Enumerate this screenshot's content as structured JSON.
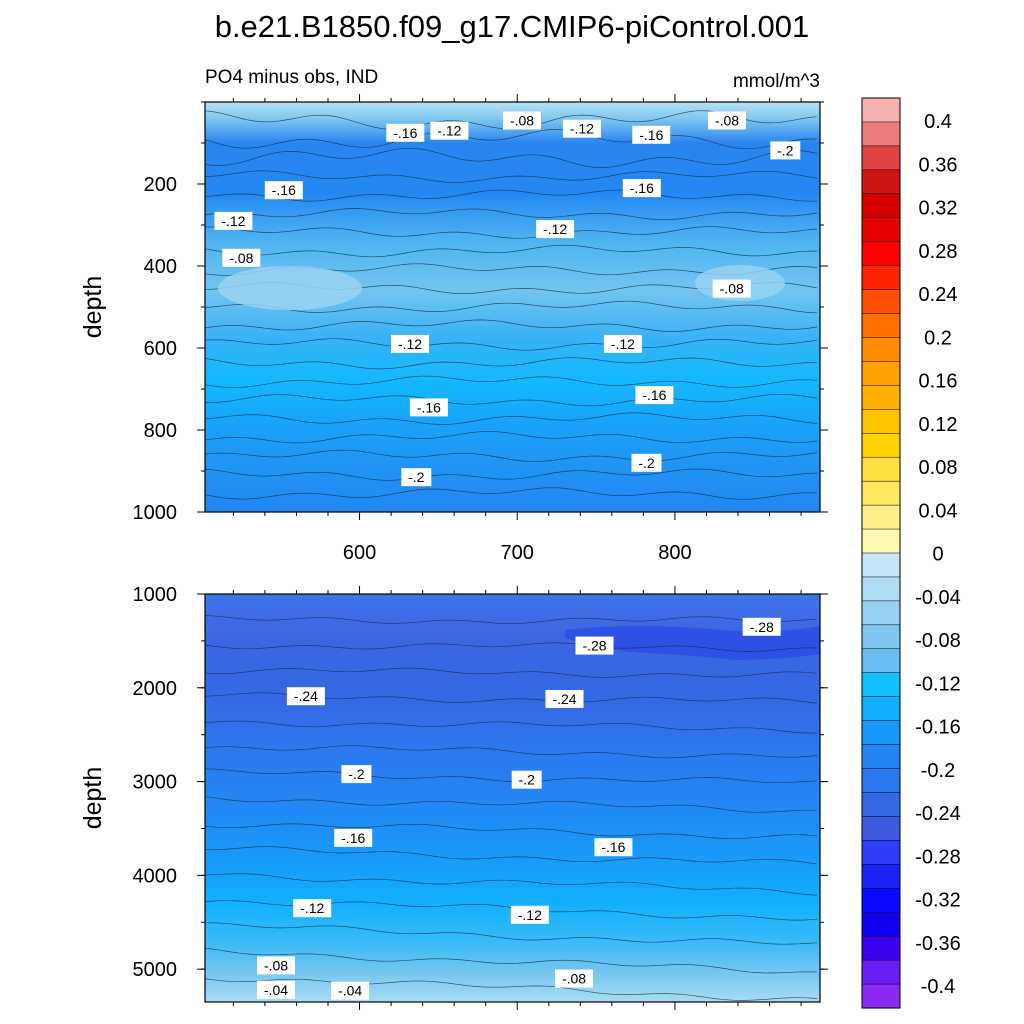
{
  "chart_data": {
    "type": "heatmap",
    "title": "b.e21.B1850.f09_g17.CMIP6-piControl.001",
    "subtitle_left": "PO4 minus obs, IND",
    "subtitle_right": "mmol/m^3",
    "colorbar": {
      "labels": [
        "0.4",
        "0.36",
        "0.32",
        "0.28",
        "0.24",
        "0.2",
        "0.16",
        "0.12",
        "0.08",
        "0.04",
        "0",
        "-0.04",
        "-0.08",
        "-0.12",
        "-0.16",
        "-0.2",
        "-0.24",
        "-0.28",
        "-0.32",
        "-0.36",
        "-0.4"
      ],
      "colors": [
        "#f8b0b0",
        "#ef7a7a",
        "#e04444",
        "#cc1414",
        "#d40000",
        "#e60000",
        "#ff0000",
        "#ff2400",
        "#ff4f00",
        "#ff6f00",
        "#ff8c00",
        "#ff9f00",
        "#ffb000",
        "#ffc300",
        "#ffd200",
        "#ffe040",
        "#ffe860",
        "#fff08c",
        "#fff8b0",
        "#c4e6f6",
        "#aedcf4",
        "#98d2f2",
        "#80c6f0",
        "#68bcf0",
        "#10c0ff",
        "#12adff",
        "#1899fa",
        "#2287f4",
        "#2b79f0",
        "#3468e4",
        "#3c5ade",
        "#2c3ef8",
        "#1a24f6",
        "#0808ff",
        "#1000f0",
        "#3c00f0",
        "#6a1ef4",
        "#8a2af0"
      ]
    },
    "panels": [
      {
        "name": "upper",
        "ylabel": "depth",
        "y_ticks": [
          200,
          400,
          600,
          800,
          1000
        ],
        "y_range": [
          0,
          1000
        ],
        "x_ticks": [
          600,
          700,
          800
        ],
        "x_range": [
          502,
          892
        ],
        "contour_labels": [
          {
            "text": "-.16",
            "x": 629,
            "y": 75
          },
          {
            "text": "-.12",
            "x": 657,
            "y": 70
          },
          {
            "text": "-.08",
            "x": 703,
            "y": 45
          },
          {
            "text": "-.12",
            "x": 741,
            "y": 65
          },
          {
            "text": "-.16",
            "x": 785,
            "y": 80
          },
          {
            "text": "-.08",
            "x": 833,
            "y": 45
          },
          {
            "text": "-.2",
            "x": 870,
            "y": 118
          },
          {
            "text": "-.16",
            "x": 552,
            "y": 215
          },
          {
            "text": "-.12",
            "x": 520,
            "y": 290
          },
          {
            "text": "-.08",
            "x": 525,
            "y": 380
          },
          {
            "text": "-.16",
            "x": 779,
            "y": 210
          },
          {
            "text": "-.12",
            "x": 724,
            "y": 310
          },
          {
            "text": "-.08",
            "x": 836,
            "y": 455
          },
          {
            "text": "-.12",
            "x": 632,
            "y": 590
          },
          {
            "text": "-.12",
            "x": 767,
            "y": 590
          },
          {
            "text": "-.16",
            "x": 644,
            "y": 745
          },
          {
            "text": "-.16",
            "x": 787,
            "y": 715
          },
          {
            "text": "-.2",
            "x": 636,
            "y": 915
          },
          {
            "text": "-.2",
            "x": 782,
            "y": 880
          }
        ]
      },
      {
        "name": "lower",
        "ylabel": "depth",
        "y_ticks": [
          1000,
          2000,
          3000,
          4000,
          5000
        ],
        "y_range": [
          1000,
          5350
        ],
        "x_range": [
          502,
          892
        ],
        "contour_labels": [
          {
            "text": "-.28",
            "x": 749,
            "y": 1550
          },
          {
            "text": "-.28",
            "x": 855,
            "y": 1350
          },
          {
            "text": "-.24",
            "x": 566,
            "y": 2090
          },
          {
            "text": "-.24",
            "x": 730,
            "y": 2120
          },
          {
            "text": "-.2",
            "x": 598,
            "y": 2920
          },
          {
            "text": "-.2",
            "x": 706,
            "y": 2980
          },
          {
            "text": "-.16",
            "x": 596,
            "y": 3600
          },
          {
            "text": "-.16",
            "x": 761,
            "y": 3700
          },
          {
            "text": "-.12",
            "x": 570,
            "y": 4350
          },
          {
            "text": "-.12",
            "x": 708,
            "y": 4420
          },
          {
            "text": "-.08",
            "x": 547,
            "y": 4960
          },
          {
            "text": "-.08",
            "x": 736,
            "y": 5100
          },
          {
            "text": "-.04",
            "x": 547,
            "y": 5220
          },
          {
            "text": "-.04",
            "x": 594,
            "y": 5230
          }
        ]
      }
    ]
  }
}
